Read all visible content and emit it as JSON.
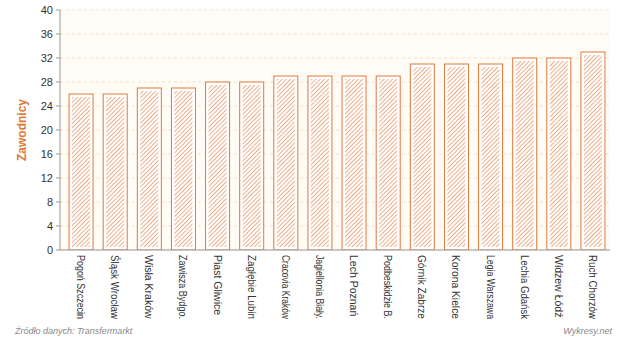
{
  "chart_data": {
    "type": "bar",
    "y_label": "Zawodnicy",
    "categories": [
      "Pogoń Szczecin",
      "Śląsk Wrocław",
      "Wisła Kraków",
      "Zawisza Bydgo.",
      "Piast Gliwice",
      "Zagłębie Lubin",
      "Cracovia Kraków",
      "Jagiellonia Biały.",
      "Lech Poznań",
      "Podbeskidzie B.",
      "Górnik Zabrze",
      "Korona Kielce",
      "Legia Warszawa",
      "Lechia Gdańsk",
      "Widzew Łódź",
      "Ruch Chorzów"
    ],
    "values": [
      26,
      26,
      27,
      27,
      28,
      28,
      29,
      29,
      29,
      29,
      31,
      31,
      31,
      32,
      32,
      33
    ],
    "color": "#e0783a",
    "ylim": [
      0,
      40
    ],
    "yticks": [
      0,
      4,
      8,
      12,
      16,
      20,
      24,
      28,
      32,
      36,
      40
    ],
    "grid": true,
    "annotations": [
      "Źródło danych: Transfermarkt",
      "Wykresy.net"
    ]
  }
}
